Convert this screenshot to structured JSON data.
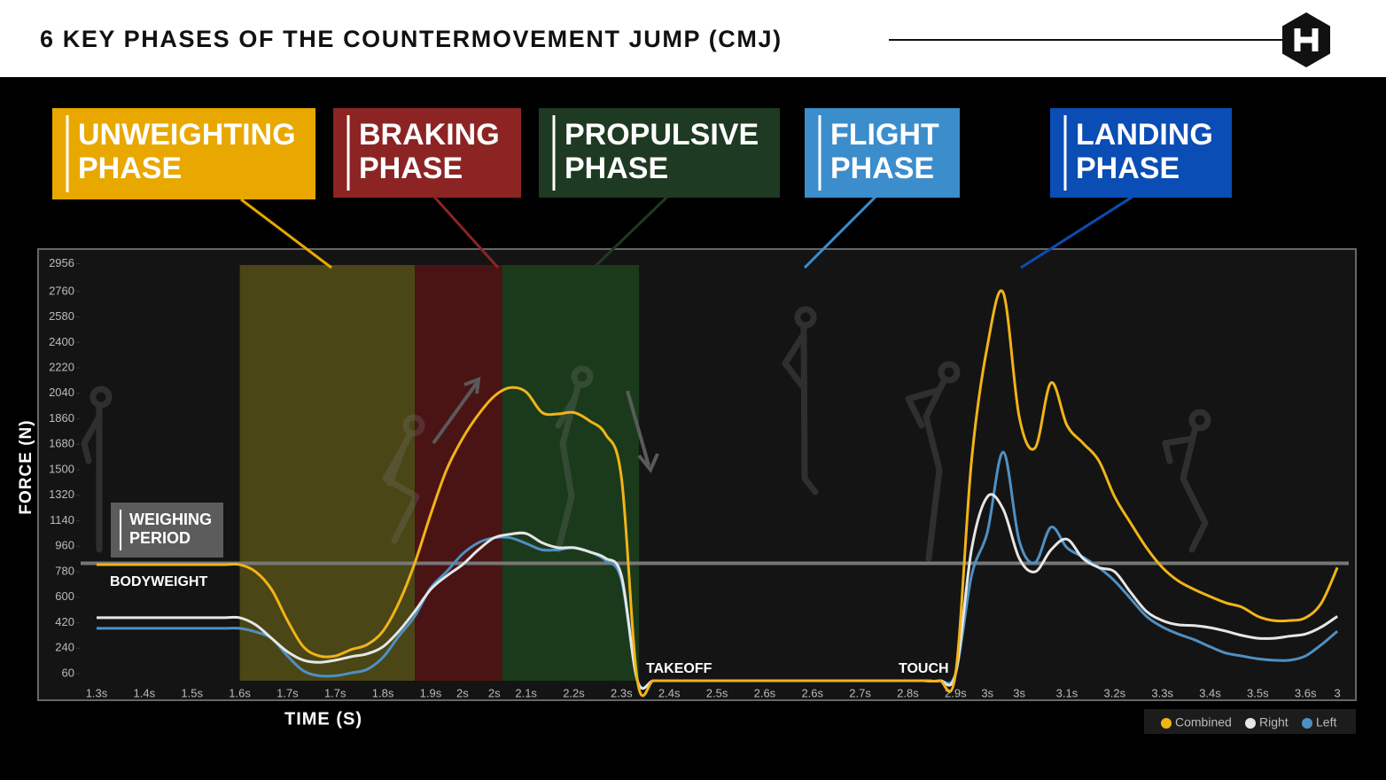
{
  "header": {
    "title": "6 KEY PHASES OF THE COUNTERMOVEMENT JUMP (CMJ)"
  },
  "phases": [
    {
      "lines": [
        "UNWEIGHTING",
        "PHASE"
      ],
      "color": "#e8a800"
    },
    {
      "lines": [
        "BRAKING",
        "PHASE"
      ],
      "color": "#8c2424"
    },
    {
      "lines": [
        "PROPULSIVE",
        "PHASE"
      ],
      "color": "#1e3a22"
    },
    {
      "lines": [
        "FLIGHT",
        "PHASE"
      ],
      "color": "#3c8dcc"
    },
    {
      "lines": [
        "LANDING",
        "PHASE"
      ],
      "color": "#0a4db4"
    }
  ],
  "chart_data": {
    "type": "line",
    "y_label": "FORCE (N)",
    "x_label": "TIME (S)",
    "categories": [
      "1.3s",
      null,
      null,
      "1.4s",
      null,
      null,
      "1.5s",
      null,
      null,
      "1.6s",
      null,
      null,
      "1.7s",
      null,
      null,
      "1.7s",
      null,
      null,
      "1.8s",
      null,
      null,
      "1.9s",
      null,
      "2s",
      null,
      "2s",
      null,
      "2.1s",
      null,
      null,
      "2.2s",
      null,
      null,
      "2.3s",
      null,
      null,
      "2.4s",
      null,
      null,
      "2.5s",
      null,
      null,
      "2.6s",
      null,
      null,
      "2.6s",
      null,
      null,
      "2.7s",
      null,
      null,
      "2.8s",
      null,
      null,
      "2.9s",
      null,
      "3s",
      null,
      "3s",
      null,
      null,
      "3.1s",
      null,
      null,
      "3.2s",
      null,
      null,
      "3.3s",
      null,
      null,
      "3.4s",
      null,
      null,
      "3.5s",
      null,
      null,
      "3.6s",
      null,
      "3"
    ],
    "series": [
      {
        "name": "Combined",
        "color": "#f1b418",
        "values": [
          830,
          830,
          830,
          830,
          830,
          830,
          830,
          830,
          830,
          830,
          780,
          655,
          435,
          250,
          185,
          185,
          230,
          265,
          360,
          560,
          840,
          1185,
          1500,
          1720,
          1890,
          2020,
          2080,
          2050,
          1905,
          1895,
          1905,
          1845,
          1750,
          1440,
          10,
          10,
          10,
          10,
          10,
          10,
          10,
          10,
          10,
          10,
          10,
          10,
          10,
          10,
          10,
          10,
          10,
          10,
          10,
          10,
          60,
          1560,
          2375,
          2750,
          1875,
          1655,
          2115,
          1815,
          1690,
          1565,
          1310,
          1125,
          950,
          810,
          715,
          655,
          605,
          560,
          530,
          465,
          435,
          435,
          455,
          560,
          810
        ]
      },
      {
        "name": "Right",
        "color": "#e6e6e6",
        "values": [
          455,
          455,
          455,
          455,
          455,
          455,
          455,
          455,
          455,
          455,
          405,
          310,
          215,
          155,
          140,
          155,
          180,
          200,
          250,
          360,
          500,
          655,
          750,
          830,
          935,
          1020,
          1045,
          1050,
          985,
          950,
          950,
          920,
          875,
          750,
          10,
          10,
          10,
          10,
          10,
          10,
          10,
          10,
          10,
          10,
          10,
          10,
          10,
          10,
          10,
          10,
          10,
          10,
          10,
          10,
          60,
          935,
          1310,
          1220,
          875,
          780,
          935,
          1010,
          875,
          810,
          780,
          635,
          500,
          435,
          405,
          400,
          385,
          360,
          330,
          310,
          310,
          325,
          340,
          390,
          465
        ]
      },
      {
        "name": "Left",
        "color": "#4f90c2",
        "values": [
          380,
          380,
          380,
          380,
          380,
          380,
          380,
          380,
          380,
          380,
          355,
          310,
          185,
          80,
          45,
          45,
          65,
          90,
          175,
          325,
          465,
          665,
          780,
          905,
          985,
          1020,
          1020,
          980,
          935,
          935,
          950,
          920,
          860,
          720,
          10,
          10,
          10,
          10,
          10,
          10,
          10,
          10,
          10,
          10,
          10,
          10,
          10,
          10,
          10,
          10,
          10,
          10,
          10,
          10,
          60,
          750,
          1060,
          1625,
          1000,
          845,
          1095,
          950,
          885,
          810,
          715,
          590,
          465,
          390,
          340,
          300,
          250,
          205,
          185,
          165,
          155,
          155,
          185,
          265,
          360
        ]
      }
    ],
    "ylim": [
      10,
      3000
    ],
    "yticks": [
      60,
      240,
      420,
      600,
      780,
      960,
      1140,
      1320,
      1500,
      1680,
      1860,
      2040,
      2220,
      2400,
      2580,
      2760,
      2956
    ],
    "grid": false,
    "legend": "bottom-right",
    "bands": [
      {
        "start": 9,
        "end": 20,
        "color": "#4a4615"
      },
      {
        "start": 20,
        "end": 25.5,
        "color": "#4a1414"
      },
      {
        "start": 25.5,
        "end": 34.1,
        "color": "#1b3a1b"
      }
    ],
    "reference_line": {
      "label": "BODYWEIGHT",
      "value": 840,
      "color": "#777777"
    },
    "weighing_period": [
      "WEIGHING",
      "PERIOD"
    ],
    "annotations": [
      "TAKEOFF",
      "TOUCH"
    ]
  }
}
